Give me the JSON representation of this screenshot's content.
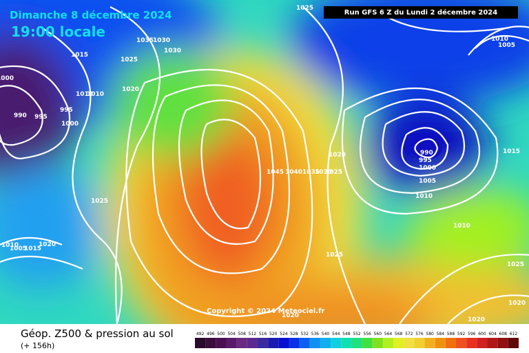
{
  "header": {
    "date": "Dimanche 8 décembre 2024",
    "time": "19:00 locale",
    "run": "Run GFS 6 Z du Lundi 2 décembre 2024"
  },
  "copyright": "Copyright © 2024 Meteociel.fr",
  "footer": {
    "title": "Géop. Z500 & pression au sol",
    "lead": "(+ 156h)"
  },
  "isobar_labels": [
    1025,
    1015,
    1035,
    1030,
    1030,
    1025,
    1010,
    1010,
    1020,
    990,
    995,
    995,
    1000,
    1000,
    1025,
    1045,
    1040,
    1035,
    1030,
    1025,
    1020,
    990,
    995,
    1000,
    1005,
    1010,
    1010,
    1015,
    1010,
    1005,
    1025,
    1025,
    1020,
    1020,
    1020,
    1010,
    1005,
    1015,
    1020
  ],
  "colorbar": {
    "labels": [
      492,
      496,
      500,
      504,
      508,
      512,
      516,
      520,
      524,
      528,
      532,
      536,
      540,
      544,
      548,
      552,
      556,
      560,
      564,
      568,
      572,
      576,
      580,
      584,
      588,
      592,
      596,
      600,
      604,
      608,
      612
    ],
    "colors": [
      "#2a0a2a",
      "#3a0d3a",
      "#4a1050",
      "#5a1a6a",
      "#6a2a80",
      "#5a2a90",
      "#3a2aa0",
      "#1a1ab0",
      "#0a10d0",
      "#0a30e8",
      "#0a60f0",
      "#1090f0",
      "#10b0f0",
      "#10d0e0",
      "#10e0b0",
      "#20e080",
      "#40e040",
      "#80e020",
      "#b0f020",
      "#e0f020",
      "#f0e040",
      "#f0d030",
      "#f0b020",
      "#f09010",
      "#f07010",
      "#f05020",
      "#e83020",
      "#d02020",
      "#b01818",
      "#901010",
      "#600808"
    ]
  }
}
